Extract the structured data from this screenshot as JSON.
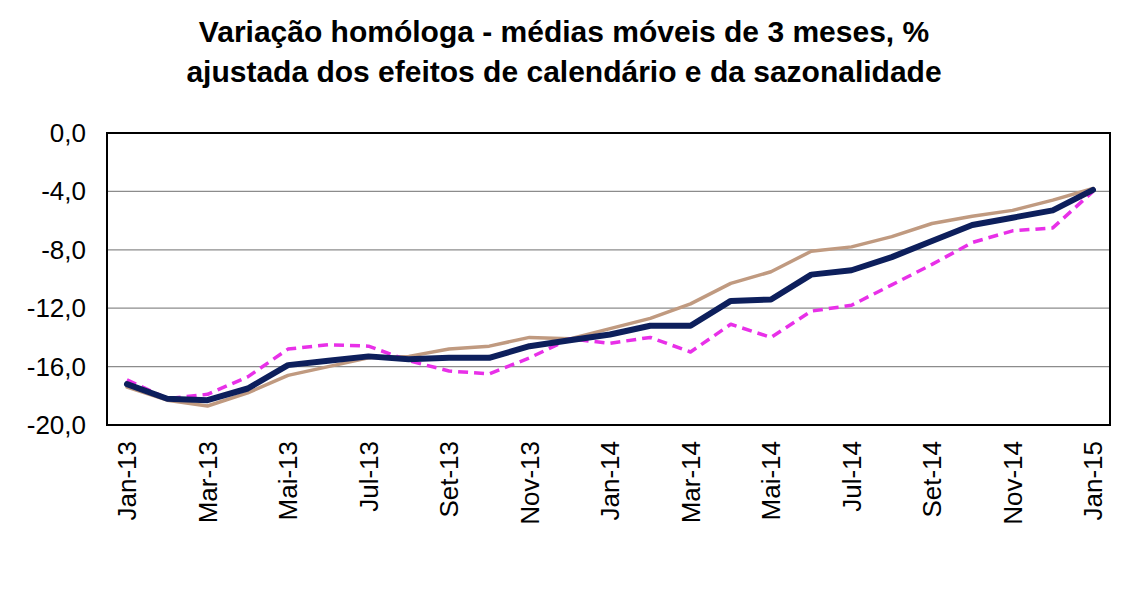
{
  "chart_data": {
    "type": "line",
    "title": "Variação homóloga - médias móveis de 3 meses, %",
    "subtitle": "ajustada dos efeitos de calendário e da sazonalidade",
    "categories": [
      "Jan-13",
      null,
      "Mar-13",
      null,
      "Mai-13",
      null,
      "Jul-13",
      null,
      "Set-13",
      null,
      "Nov-13",
      null,
      "Jan-14",
      null,
      "Mar-14",
      null,
      "Mai-14",
      null,
      "Jul-14",
      null,
      "Set-14",
      null,
      "Nov-14",
      null,
      "Jan-15"
    ],
    "series": [
      {
        "color": "#c09a80",
        "line_style": "solid",
        "values": [
          -17.4,
          -18.3,
          -18.7,
          -17.8,
          -16.6,
          -16.0,
          -15.4,
          -15.3,
          -14.8,
          -14.6,
          -14.0,
          -14.1,
          -13.4,
          -12.7,
          -11.7,
          -10.3,
          -9.5,
          -8.1,
          -7.8,
          -7.1,
          -6.2,
          -5.7,
          -5.3,
          -4.6,
          -3.8
        ]
      },
      {
        "color": "#e830e8",
        "line_style": "dashed",
        "values": [
          -16.9,
          -18.2,
          -17.9,
          -16.7,
          -14.8,
          -14.5,
          -14.6,
          -15.6,
          -16.3,
          -16.5,
          -15.4,
          -14.1,
          -14.4,
          -14.0,
          -15.0,
          -13.1,
          -14.0,
          -12.2,
          -11.8,
          -10.4,
          -9.0,
          -7.5,
          -6.7,
          -6.5,
          -4.0
        ]
      },
      {
        "color": "#0d1f5c",
        "line_style": "solid",
        "values": [
          -17.2,
          -18.2,
          -18.3,
          -17.5,
          -15.9,
          -15.6,
          -15.3,
          -15.5,
          -15.4,
          -15.4,
          -14.6,
          -14.2,
          -13.8,
          -13.2,
          -13.2,
          -11.5,
          -11.4,
          -9.7,
          -9.4,
          -8.5,
          -7.4,
          -6.3,
          -5.8,
          -5.3,
          -3.9
        ]
      }
    ],
    "ylim": [
      -20,
      0
    ],
    "yticks": [
      {
        "value": -20,
        "label": "-20,0"
      },
      {
        "value": -16,
        "label": "-16,0"
      },
      {
        "value": -12,
        "label": "-12,0"
      },
      {
        "value": -8,
        "label": "-8,0"
      },
      {
        "value": -4,
        "label": "-4,0"
      },
      {
        "value": 0,
        "label": "0,0"
      }
    ],
    "grid": true
  }
}
